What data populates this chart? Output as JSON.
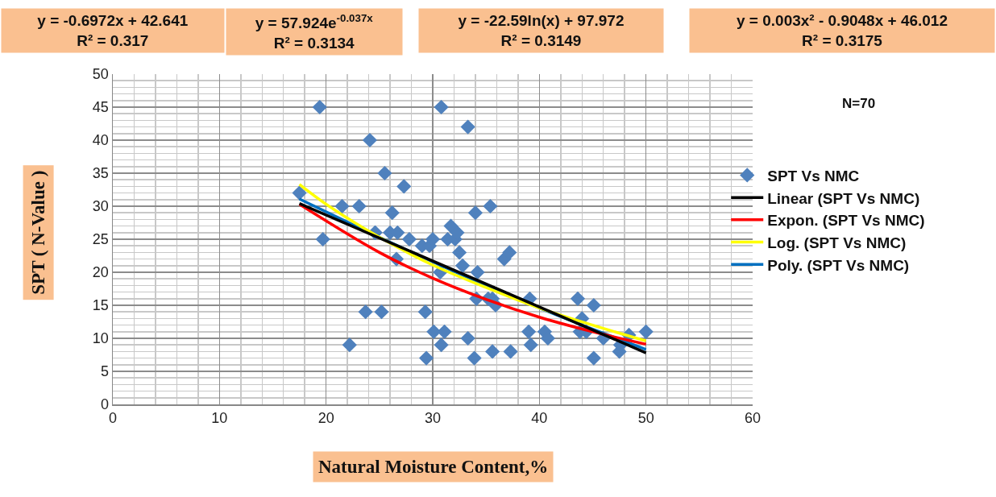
{
  "chart_data": {
    "type": "scatter",
    "xlabel": "Natural Moisture Content,%",
    "ylabel": "SPT ( N-Value )",
    "annotations": [
      "y = -0.6972x + 42.641\nR² = 0.317",
      "y = 57.924e$^{-0.037x}$\nR² = 0.3134",
      "y = -22.59ln(x) + 97.972\nR² = 0.3149",
      "y = 0.003x² - 0.9048x + 46.012\nR² = 0.3175",
      "N=70"
    ],
    "xlim": [
      0,
      60
    ],
    "xticks": [
      0,
      10,
      20,
      30,
      40,
      50,
      60
    ],
    "ylim": [
      0,
      50
    ],
    "yticks": [
      0,
      5,
      10,
      15,
      20,
      25,
      30,
      35,
      40,
      45,
      50
    ],
    "grid": true,
    "legend": "right",
    "marker": "diamond",
    "series": [
      {
        "name": "SPT Vs NMC",
        "color": "#4f81bd",
        "x": [
          17.5,
          19.4,
          19.7,
          21.5,
          23.1,
          24.1,
          23.7,
          22.2,
          25.5,
          26.2,
          27.3,
          24.6,
          26,
          26.7,
          26.6,
          27.8,
          25.2,
          29.4,
          29.3,
          29,
          29.7,
          30,
          30.1,
          30.8,
          31.1,
          30.7,
          30.8,
          33.3,
          31.7,
          32.1,
          32.3,
          32.5,
          32.8,
          33.3,
          33.9,
          34,
          34.2,
          34.1,
          35.4,
          35.6,
          35.2,
          35.9,
          37.3,
          36.7,
          37.2,
          39.1,
          39,
          39.2,
          40.5,
          40.8,
          43.6,
          43.8,
          44,
          44.4,
          45.1,
          45.1,
          46,
          47.5,
          47.6,
          48.4,
          50,
          31.4,
          35.6,
          24.6
        ],
        "values": [
          32,
          45,
          25,
          30,
          30,
          40,
          14,
          9,
          35,
          29,
          33,
          26,
          26,
          26,
          22,
          25,
          14,
          7,
          14,
          24,
          24,
          25,
          11,
          9,
          11,
          20,
          45,
          42,
          27,
          25,
          26,
          23,
          21,
          10,
          7,
          29,
          20,
          16,
          30,
          8,
          16,
          15,
          8,
          22,
          23,
          16,
          11,
          9,
          11,
          10,
          16,
          11,
          13,
          11,
          15,
          7,
          10,
          8,
          9,
          10.5,
          11,
          25,
          16,
          26
        ]
      },
      {
        "name": "Linear (SPT Vs NMC)",
        "color": "#000000",
        "type": "line",
        "marker": "none",
        "x": [
          17.5,
          50
        ],
        "values": [
          30.4,
          7.8
        ]
      },
      {
        "name": "Expon. (SPT Vs NMC)",
        "color": "#ff0000",
        "type": "line",
        "marker": "none",
        "x": [
          17.5,
          25,
          30,
          35,
          40,
          45,
          50
        ],
        "values": [
          30.3,
          23,
          19.1,
          15.9,
          13.2,
          11,
          9.1
        ]
      },
      {
        "name": "Log. (SPT Vs NMC)",
        "color": "#ffff00",
        "type": "line",
        "marker": "none",
        "x": [
          17.5,
          20,
          25,
          30,
          35,
          40,
          45,
          50
        ],
        "values": [
          33.3,
          30.3,
          25.3,
          21.1,
          17.7,
          14.6,
          12,
          9.6
        ]
      },
      {
        "name": "Poly. (SPT Vs NMC)",
        "color": "#0070c0",
        "type": "line",
        "marker": "none",
        "x": [
          17.5,
          25,
          30,
          35,
          40,
          45,
          50
        ],
        "values": [
          31.1,
          25.3,
          21.6,
          18,
          14.6,
          11.4,
          8.3
        ]
      }
    ]
  }
}
